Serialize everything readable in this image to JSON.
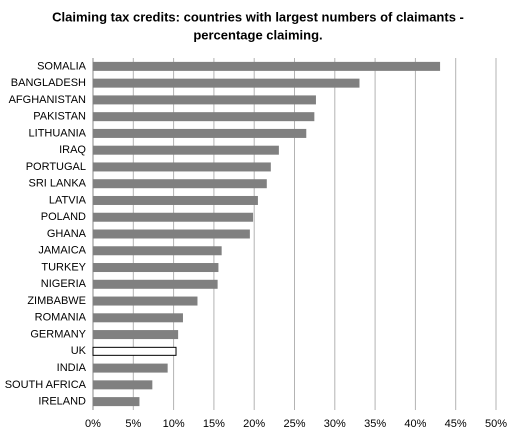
{
  "chart_data": {
    "type": "barh",
    "title": [
      "Claiming tax credits: countries with largest numbers of claimants -",
      "percentage claiming."
    ],
    "categories": [
      "SOMALIA",
      "BANGLADESH",
      "AFGHANISTAN",
      "PAKISTAN",
      "LITHUANIA",
      "IRAQ",
      "PORTUGAL",
      "SRI LANKA",
      "LATVIA",
      "POLAND",
      "GHANA",
      "JAMAICA",
      "TURKEY",
      "NIGERIA",
      "ZIMBABWE",
      "ROMANIA",
      "GERMANY",
      "UK",
      "INDIA",
      "SOUTH AFRICA",
      "IRELAND"
    ],
    "values": [
      43,
      33,
      27.6,
      27.4,
      26.4,
      23,
      22,
      21.5,
      20.4,
      19.8,
      19.4,
      15.9,
      15.5,
      15.4,
      12.9,
      11.1,
      10.5,
      10.3,
      9.2,
      7.3,
      5.7
    ],
    "colors": [
      "#808080",
      "#808080",
      "#808080",
      "#808080",
      "#808080",
      "#808080",
      "#808080",
      "#808080",
      "#808080",
      "#808080",
      "#808080",
      "#808080",
      "#808080",
      "#808080",
      "#808080",
      "#808080",
      "#808080",
      "#ffffff",
      "#808080",
      "#808080",
      "#808080"
    ],
    "edgecolors": [
      "#808080",
      "#808080",
      "#808080",
      "#808080",
      "#808080",
      "#808080",
      "#808080",
      "#808080",
      "#808080",
      "#808080",
      "#808080",
      "#808080",
      "#808080",
      "#808080",
      "#808080",
      "#808080",
      "#808080",
      "#000000",
      "#808080",
      "#808080",
      "#808080"
    ],
    "xlim": [
      0,
      50
    ],
    "xticks": [
      {
        "value": 0,
        "label": "0%"
      },
      {
        "value": 5,
        "label": "5%"
      },
      {
        "value": 10,
        "label": "10%"
      },
      {
        "value": 15,
        "label": "15%"
      },
      {
        "value": 20,
        "label": "20%"
      },
      {
        "value": 25,
        "label": "25%"
      },
      {
        "value": 30,
        "label": "30%"
      },
      {
        "value": 35,
        "label": "35%"
      },
      {
        "value": 40,
        "label": "40%"
      },
      {
        "value": 45,
        "label": "45%"
      },
      {
        "value": 50,
        "label": "50%"
      }
    ],
    "grid": true
  }
}
